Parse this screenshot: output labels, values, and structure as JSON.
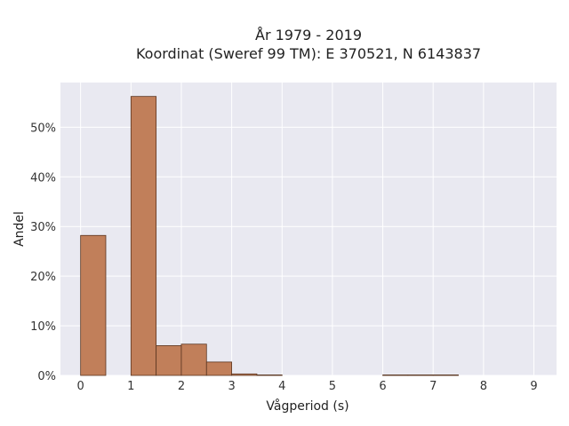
{
  "chart_data": {
    "type": "bar",
    "title": "År 1979 - 2019",
    "subtitle": "Koordinat (Sweref 99 TM): E 370521, N 6143837",
    "xlabel": "Vågperiod (s)",
    "ylabel": "Andel",
    "xlim": [
      -0.4,
      9.45
    ],
    "ylim": [
      0,
      0.59
    ],
    "x_ticks": [
      0,
      1,
      2,
      3,
      4,
      5,
      6,
      7,
      8,
      9
    ],
    "y_ticks": [
      0,
      0.1,
      0.2,
      0.3,
      0.4,
      0.5
    ],
    "y_tick_labels": [
      "0%",
      "10%",
      "20%",
      "30%",
      "40%",
      "50%"
    ],
    "bin_width": 0.5,
    "bins": [
      {
        "start": 0.0,
        "value": 0.282
      },
      {
        "start": 0.5,
        "value": 0.0
      },
      {
        "start": 1.0,
        "value": 0.562
      },
      {
        "start": 1.5,
        "value": 0.06
      },
      {
        "start": 2.0,
        "value": 0.063
      },
      {
        "start": 2.5,
        "value": 0.027
      },
      {
        "start": 3.0,
        "value": 0.003
      },
      {
        "start": 3.5,
        "value": 0.001
      },
      {
        "start": 6.0,
        "value": 0.001
      },
      {
        "start": 6.5,
        "value": 0.001
      },
      {
        "start": 7.0,
        "value": 0.001
      }
    ],
    "bar_color": "#c17f5a",
    "bar_edge_color": "#5a3520",
    "background_color": "#e9e9f1",
    "grid": true
  }
}
